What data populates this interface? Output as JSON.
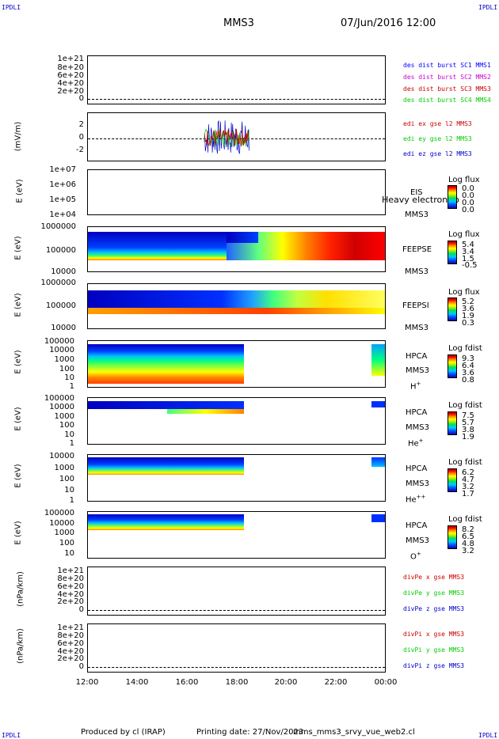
{
  "corner_label": "IPDLI",
  "header": {
    "spacecraft": "MMS3",
    "datetime": "07/Jun/2016 12:00"
  },
  "time_axis": {
    "ticks": [
      "12:00",
      "14:00",
      "16:00",
      "18:00",
      "20:00",
      "22:00",
      "00:00"
    ]
  },
  "panels": {
    "dens": {
      "ticks": [
        "1e+21",
        "8e+20",
        "6e+20",
        "4e+20",
        "2e+20",
        "0"
      ],
      "legend": [
        "des dist burst SC1 MMS1",
        "des dist burst SC2 MMS2",
        "des dist burst SC3 MMS3",
        "des dist burst SC4 MMS4"
      ]
    },
    "edi": {
      "ylabel": "(mV/m)",
      "ticks": [
        "2",
        "0",
        "-2"
      ],
      "legend": [
        "edi ex gse l2 MMS3",
        "edi ey gse l2 MMS3",
        "edi ez gse l2 MMS3"
      ]
    },
    "eis": {
      "ylabel": "E (eV)",
      "ticks": [
        "1e+07",
        "1e+06",
        "1e+05",
        "1e+04"
      ],
      "inst": "EIS",
      "sc": "MMS3",
      "overlay": "Heavy electron to",
      "cb_title": "Log flux",
      "cb_values": [
        "0.0",
        "0.0",
        "0.0",
        "0.0"
      ]
    },
    "feepse": {
      "ylabel": "E (eV)",
      "ticks": [
        "1000000",
        "100000",
        "10000"
      ],
      "inst": "FEEPSE",
      "sc": "MMS3",
      "cb_title": "Log flux",
      "cb_values": [
        "5.4",
        "3.4",
        "1.5",
        "-0.5"
      ]
    },
    "feepsi": {
      "ylabel": "E (eV)",
      "ticks": [
        "1000000",
        "100000",
        "10000"
      ],
      "inst": "FEEPSI",
      "sc": "MMS3",
      "cb_title": "Log flux",
      "cb_values": [
        "5.2",
        "3.6",
        "1.9",
        "0.3"
      ]
    },
    "hpca_h": {
      "ylabel": "E (eV)",
      "ticks": [
        "100000",
        "10000",
        "1000",
        "100",
        "10",
        "1"
      ],
      "inst": "HPCA",
      "sc": "MMS3",
      "species": "H",
      "sup": "+",
      "cb_title": "Log fdist",
      "cb_values": [
        "9.3",
        "6.4",
        "3.6",
        "0.8"
      ]
    },
    "hpca_he": {
      "ylabel": "E (eV)",
      "ticks": [
        "100000",
        "10000",
        "1000",
        "100",
        "10",
        "1"
      ],
      "inst": "HPCA",
      "sc": "MMS3",
      "species": "He",
      "sup": "+",
      "cb_title": "Log fdist",
      "cb_values": [
        "7.5",
        "5.7",
        "3.8",
        "1.9"
      ]
    },
    "hpca_hepp": {
      "ylabel": "E (eV)",
      "ticks": [
        "10000",
        "1000",
        "100",
        "10",
        "1"
      ],
      "inst": "HPCA",
      "sc": "MMS3",
      "species": "He",
      "sup": "++",
      "cb_title": "Log fdist",
      "cb_values": [
        "6.2",
        "4.7",
        "3.2",
        "1.7"
      ]
    },
    "hpca_o": {
      "ylabel": "E (eV)",
      "ticks": [
        "100000",
        "10000",
        "1000",
        "100",
        "10"
      ],
      "inst": "HPCA",
      "sc": "MMS3",
      "species": "O",
      "sup": "+",
      "cb_title": "Log fdist",
      "cb_values": [
        "8.2",
        "6.5",
        "4.8",
        "3.2"
      ]
    },
    "divpe": {
      "ylabel": "(nPa/km)",
      "ticks": [
        "1e+21",
        "8e+20",
        "6e+20",
        "4e+20",
        "2e+20",
        "0"
      ],
      "legend": [
        "divPe x gse MMS3",
        "divPe y gse MMS3",
        "divPe z gse MMS3"
      ]
    },
    "divpi": {
      "ylabel": "(nPa/km)",
      "ticks": [
        "1e+21",
        "8e+20",
        "6e+20",
        "4e+20",
        "2e+20",
        "0"
      ],
      "legend": [
        "divPi x gse MMS3",
        "divPi y gse MMS3",
        "divPi z gse MMS3"
      ]
    }
  },
  "footer": {
    "produced": "Produced by cl (IRAP)",
    "printing": "Printing date: 27/Nov/2023",
    "file": "mms_mms3_srvy_vue_web2.cl"
  },
  "colors": {
    "mms1": "#0000ff",
    "mms2": "#cc00cc",
    "mms3": "#cc0000",
    "mms4": "#00cc00",
    "x": "#cc0000",
    "y": "#00cc00",
    "z": "#0000cc"
  },
  "chart_data": {
    "type": "heatmap",
    "x": [
      "12:00",
      "14:00",
      "16:00",
      "18:00",
      "20:00",
      "22:00",
      "00:00"
    ],
    "panels": [
      "EIS",
      "FEEPSE",
      "FEEPSI",
      "HPCA H+",
      "HPCA He+",
      "HPCA He++",
      "HPCA O+"
    ],
    "edi_range_mV_per_m": [
      -3,
      3
    ]
  }
}
